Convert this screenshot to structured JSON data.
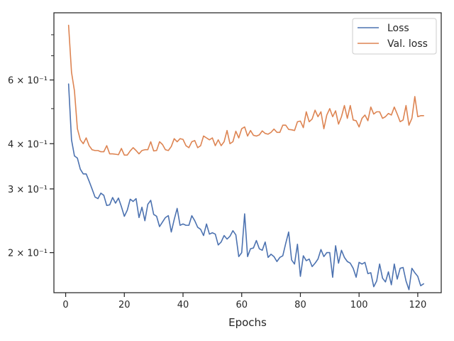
{
  "chart_data": {
    "type": "line",
    "title": "",
    "xlabel": "Epochs",
    "ylabel": "",
    "xlim": [
      -4,
      128
    ],
    "ylim": [
      0.155,
      0.92
    ],
    "yscale": "log",
    "grid": false,
    "legend_position": "top-right",
    "x_ticks": [
      {
        "value": 0,
        "label": "0"
      },
      {
        "value": 20,
        "label": "20"
      },
      {
        "value": 40,
        "label": "40"
      },
      {
        "value": 60,
        "label": "60"
      },
      {
        "value": 80,
        "label": "80"
      },
      {
        "value": 100,
        "label": "100"
      },
      {
        "value": 120,
        "label": "120"
      }
    ],
    "y_major_ticks": [
      {
        "value": 0.2,
        "label": "2 × 10⁻¹"
      },
      {
        "value": 0.3,
        "label": "3 × 10⁻¹"
      },
      {
        "value": 0.4,
        "label": "4 × 10⁻¹"
      },
      {
        "value": 0.6,
        "label": "6 × 10⁻¹"
      }
    ],
    "y_minor_ticks": [
      0.5,
      0.7,
      0.8
    ],
    "series": [
      {
        "name": "Loss",
        "color": "#4c72b0",
        "x": [
          1,
          2,
          3,
          4,
          5,
          6,
          7,
          8,
          9,
          10,
          11,
          12,
          13,
          14,
          15,
          16,
          17,
          18,
          19,
          20,
          21,
          22,
          23,
          24,
          25,
          26,
          27,
          28,
          29,
          30,
          31,
          32,
          33,
          34,
          35,
          36,
          37,
          38,
          39,
          40,
          41,
          42,
          43,
          44,
          45,
          46,
          47,
          48,
          49,
          50,
          51,
          52,
          53,
          54,
          55,
          56,
          57,
          58,
          59,
          60,
          61,
          62,
          63,
          64,
          65,
          66,
          67,
          68,
          69,
          70,
          71,
          72,
          73,
          74,
          75,
          76,
          77,
          78,
          79,
          80,
          81,
          82,
          83,
          84,
          85,
          86,
          87,
          88,
          89,
          90,
          91,
          92,
          93,
          94,
          95,
          96,
          97,
          98,
          99,
          100,
          101,
          102,
          103,
          104,
          105,
          106,
          107,
          108,
          109,
          110,
          111,
          112,
          113,
          114,
          115,
          116,
          117,
          118,
          119,
          120,
          121,
          122
        ],
        "values": [
          0.585,
          0.41,
          0.37,
          0.365,
          0.34,
          0.33,
          0.33,
          0.315,
          0.3,
          0.285,
          0.282,
          0.292,
          0.288,
          0.27,
          0.271,
          0.284,
          0.274,
          0.283,
          0.268,
          0.252,
          0.262,
          0.281,
          0.277,
          0.282,
          0.25,
          0.267,
          0.245,
          0.272,
          0.279,
          0.255,
          0.252,
          0.236,
          0.243,
          0.25,
          0.253,
          0.228,
          0.247,
          0.265,
          0.238,
          0.24,
          0.238,
          0.238,
          0.253,
          0.245,
          0.235,
          0.232,
          0.223,
          0.24,
          0.225,
          0.227,
          0.225,
          0.21,
          0.214,
          0.223,
          0.218,
          0.222,
          0.23,
          0.224,
          0.195,
          0.2,
          0.256,
          0.195,
          0.205,
          0.206,
          0.216,
          0.205,
          0.203,
          0.214,
          0.194,
          0.198,
          0.195,
          0.189,
          0.194,
          0.196,
          0.212,
          0.228,
          0.191,
          0.186,
          0.211,
          0.172,
          0.196,
          0.19,
          0.192,
          0.183,
          0.187,
          0.192,
          0.204,
          0.195,
          0.2,
          0.2,
          0.171,
          0.209,
          0.187,
          0.203,
          0.194,
          0.189,
          0.187,
          0.181,
          0.171,
          0.188,
          0.186,
          0.188,
          0.175,
          0.176,
          0.161,
          0.167,
          0.186,
          0.17,
          0.166,
          0.177,
          0.163,
          0.186,
          0.169,
          0.181,
          0.182,
          0.167,
          0.158,
          0.181,
          0.176,
          0.172,
          0.162,
          0.164
        ]
      },
      {
        "name": "Val. loss",
        "color": "#dd8452",
        "x": [
          1,
          2,
          3,
          4,
          5,
          6,
          7,
          8,
          9,
          10,
          11,
          12,
          13,
          14,
          15,
          16,
          17,
          18,
          19,
          20,
          21,
          22,
          23,
          24,
          25,
          26,
          27,
          28,
          29,
          30,
          31,
          32,
          33,
          34,
          35,
          36,
          37,
          38,
          39,
          40,
          41,
          42,
          43,
          44,
          45,
          46,
          47,
          48,
          49,
          50,
          51,
          52,
          53,
          54,
          55,
          56,
          57,
          58,
          59,
          60,
          61,
          62,
          63,
          64,
          65,
          66,
          67,
          68,
          69,
          70,
          71,
          72,
          73,
          74,
          75,
          76,
          77,
          78,
          79,
          80,
          81,
          82,
          83,
          84,
          85,
          86,
          87,
          88,
          89,
          90,
          91,
          92,
          93,
          94,
          95,
          96,
          97,
          98,
          99,
          100,
          101,
          102,
          103,
          104,
          105,
          106,
          107,
          108,
          109,
          110,
          111,
          112,
          113,
          114,
          115,
          116,
          117,
          118,
          119,
          120,
          121,
          122
        ],
        "values": [
          0.85,
          0.63,
          0.56,
          0.44,
          0.41,
          0.4,
          0.415,
          0.395,
          0.385,
          0.383,
          0.383,
          0.38,
          0.38,
          0.395,
          0.375,
          0.375,
          0.374,
          0.373,
          0.388,
          0.372,
          0.372,
          0.382,
          0.39,
          0.383,
          0.375,
          0.383,
          0.385,
          0.385,
          0.405,
          0.382,
          0.383,
          0.405,
          0.398,
          0.385,
          0.383,
          0.393,
          0.413,
          0.405,
          0.413,
          0.411,
          0.395,
          0.39,
          0.405,
          0.408,
          0.39,
          0.395,
          0.42,
          0.415,
          0.41,
          0.415,
          0.395,
          0.41,
          0.395,
          0.405,
          0.435,
          0.4,
          0.405,
          0.433,
          0.415,
          0.44,
          0.445,
          0.42,
          0.435,
          0.422,
          0.42,
          0.423,
          0.434,
          0.427,
          0.425,
          0.43,
          0.439,
          0.43,
          0.43,
          0.45,
          0.45,
          0.438,
          0.437,
          0.435,
          0.46,
          0.462,
          0.443,
          0.49,
          0.46,
          0.468,
          0.495,
          0.475,
          0.49,
          0.44,
          0.48,
          0.5,
          0.475,
          0.493,
          0.453,
          0.475,
          0.51,
          0.47,
          0.51,
          0.465,
          0.463,
          0.445,
          0.47,
          0.48,
          0.463,
          0.505,
          0.483,
          0.49,
          0.49,
          0.47,
          0.475,
          0.485,
          0.48,
          0.505,
          0.483,
          0.46,
          0.465,
          0.51,
          0.45,
          0.47,
          0.54,
          0.475,
          0.478,
          0.478
        ]
      }
    ]
  }
}
